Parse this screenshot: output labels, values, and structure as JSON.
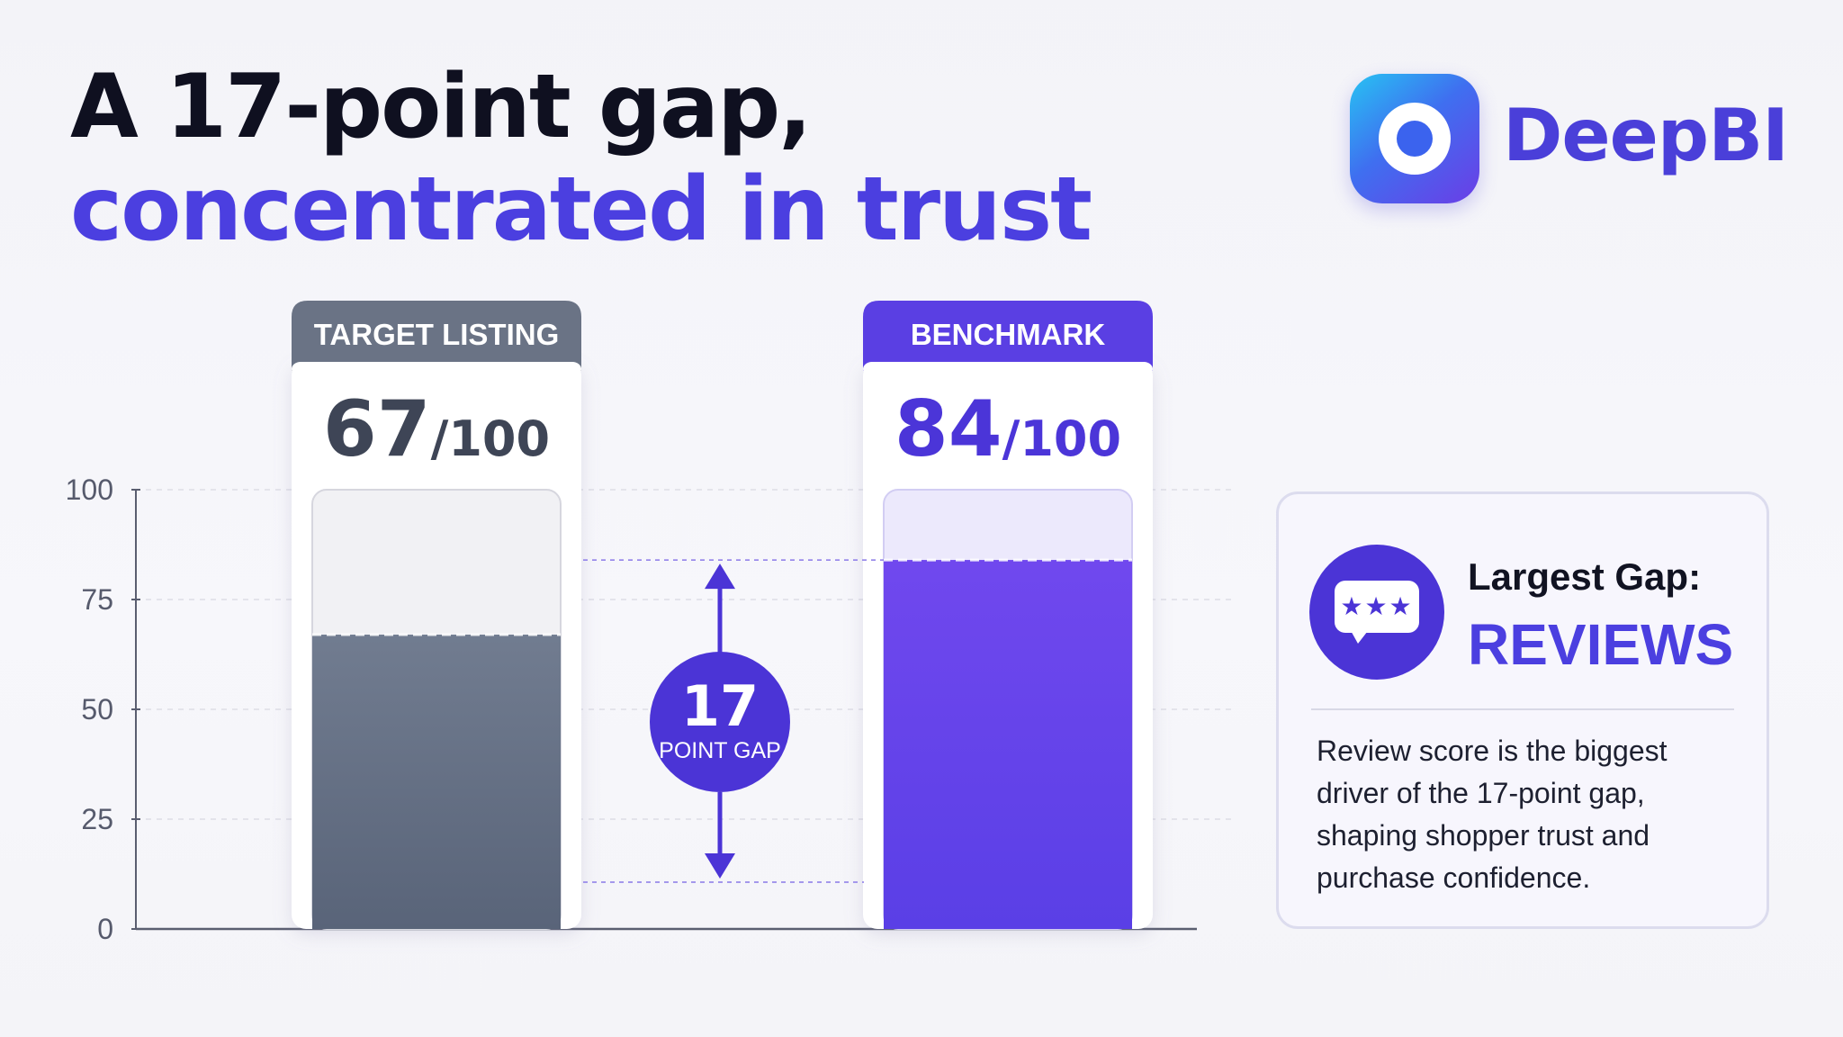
{
  "header": {
    "title_line1": "A 17-point gap,",
    "title_line2": "concentrated in trust"
  },
  "brand": {
    "name": "DeepBI",
    "logo_icon": "eye-ring-logo-icon"
  },
  "chart_data": {
    "type": "bar",
    "categories": [
      "TARGET LISTING",
      "BENCHMARK"
    ],
    "values": [
      67,
      84
    ],
    "score_labels": [
      "67",
      "84"
    ],
    "score_suffix": "/100",
    "ylim": [
      0,
      100
    ],
    "yticks": [
      "100",
      "75",
      "50",
      "25",
      "0"
    ],
    "ytick_values": [
      100,
      75,
      50,
      25,
      0
    ],
    "grid": true,
    "annotation": {
      "value": "17",
      "label": "POINT GAP"
    },
    "colors": {
      "target_header": "#6a7385",
      "target_fill": "#5e6a80",
      "benchmark_header": "#5a3fe3",
      "benchmark_fill": "#6a45ec",
      "benchmark_score": "#4b35d8",
      "target_score": "#3e4556",
      "gap": "#4b34d6"
    }
  },
  "insight": {
    "icon": "review-stars-chat-icon",
    "stars": "★★★",
    "label": "Largest Gap:",
    "value": "REVIEWS",
    "description": "Review score is the biggest driver of the 17-point gap, shaping shopper trust and purchase confidence."
  }
}
